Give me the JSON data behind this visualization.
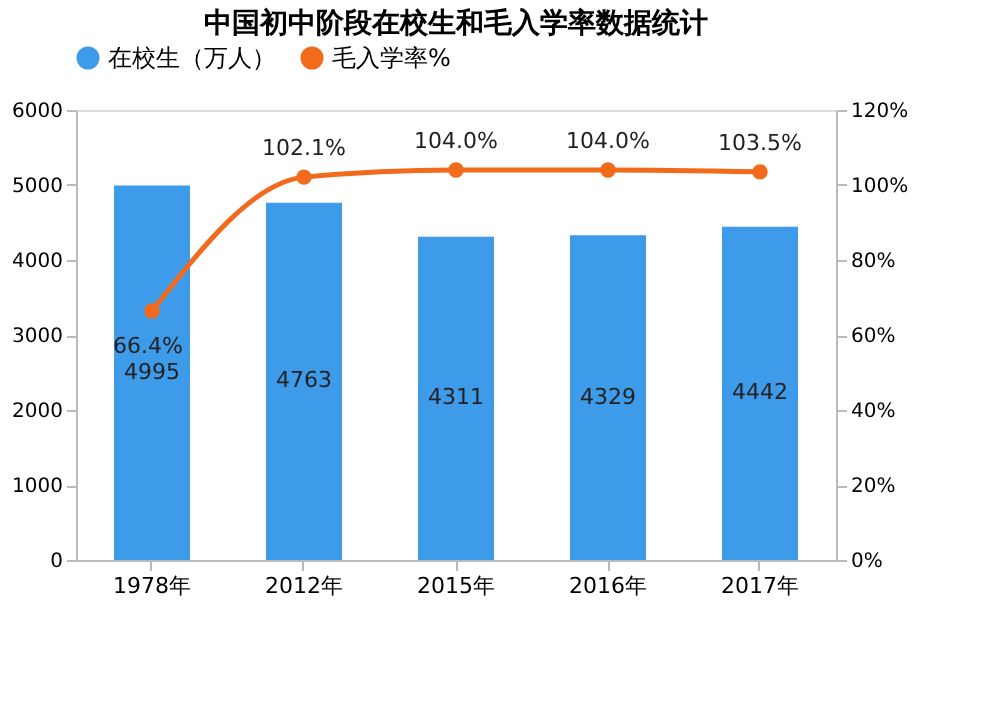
{
  "chart_data": {
    "type": "bar",
    "title": "中国初中阶段在校生和毛入学率数据统计",
    "categories": [
      "1978年",
      "2012年",
      "2015年",
      "2016年",
      "2017年"
    ],
    "series": [
      {
        "name": "在校生（万人）",
        "color": "#3d9be9",
        "values": [
          4995,
          4763,
          4311,
          4329,
          4442
        ],
        "value_labels": [
          "4995",
          "4763",
          "4311",
          "4329",
          "4442"
        ]
      },
      {
        "name": "毛入学率%",
        "type": "line",
        "axis": "y2",
        "color": "#f26b1d",
        "marker": "circle",
        "values": [
          66.4,
          102.1,
          104.0,
          104.0,
          103.5
        ],
        "value_labels": [
          "66.4%",
          "102.1%",
          "104.0%",
          "104.0%",
          "103.5%"
        ]
      }
    ],
    "ylim": [
      0,
      6000
    ],
    "yticks": [
      0,
      1000,
      2000,
      3000,
      4000,
      5000,
      6000
    ],
    "y2lim": [
      0,
      120
    ],
    "y2ticks": [
      {
        "value": 0,
        "label": "0%"
      },
      {
        "value": 20,
        "label": "20%"
      },
      {
        "value": 40,
        "label": "40%"
      },
      {
        "value": 60,
        "label": "60%"
      },
      {
        "value": 80,
        "label": "80%"
      },
      {
        "value": 100,
        "label": "100%"
      },
      {
        "value": 120,
        "label": "120%"
      }
    ],
    "grid": false,
    "legend": "top"
  }
}
